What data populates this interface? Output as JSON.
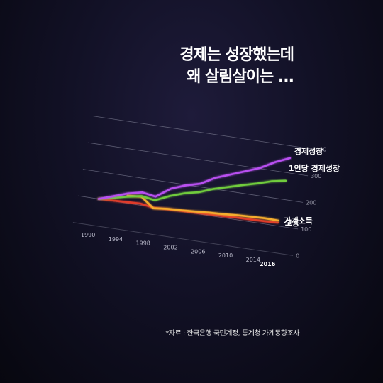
{
  "title": {
    "line1": "경제는 성장했는데",
    "line2": "왜 살림살이는 ..."
  },
  "source": "*자료 : 한국은행 국민계정, 통계청 가계동향조사",
  "colors": {
    "economy_growth": "#b84ff0",
    "per_capita_growth": "#6fcb3c",
    "household_income": "#f4ad2e",
    "employment": "#e03a2a"
  },
  "chart_data": {
    "type": "line",
    "x_ticks": [
      "1990",
      "1994",
      "1998",
      "2002",
      "2006",
      "2010",
      "2014",
      "2016"
    ],
    "y_ticks": [
      "0",
      "100",
      "200",
      "300",
      "400"
    ],
    "ylim": [
      0,
      400
    ],
    "series": [
      {
        "name": "경제성장",
        "color": "#b84ff0",
        "x": [
          1990,
          1992,
          1994,
          1996,
          1998,
          2000,
          2002,
          2004,
          2006,
          2008,
          2010,
          2012,
          2014,
          2016
        ],
        "values": [
          100,
          118,
          136,
          148,
          140,
          178,
          198,
          212,
          242,
          262,
          282,
          302,
          332,
          355
        ]
      },
      {
        "name": "1인당 경제성장",
        "color": "#6fcb3c",
        "x": [
          1990,
          1992,
          1994,
          1996,
          1998,
          2000,
          2002,
          2004,
          2006,
          2008,
          2010,
          2012,
          2014,
          2016
        ],
        "values": [
          100,
          112,
          124,
          134,
          126,
          150,
          168,
          180,
          200,
          215,
          230,
          244,
          260,
          270
        ]
      },
      {
        "name": "가계소득",
        "color": "#f4ad2e",
        "x": [
          1994,
          1996,
          1998,
          2000,
          2002,
          2004,
          2006,
          2008,
          2010,
          2012,
          2014,
          2016
        ],
        "values": [
          128,
          132,
          96,
          102,
          104,
          107,
          111,
          113,
          117,
          119,
          121,
          120
        ]
      },
      {
        "name": "고용",
        "color": "#e03a2a",
        "x": [
          1990,
          1992,
          1994,
          1996,
          1998,
          2000,
          2002,
          2004,
          2006,
          2008,
          2010,
          2012,
          2014,
          2016
        ],
        "values": [
          100,
          102,
          104,
          106,
          98,
          100,
          102,
          103,
          105,
          106,
          108,
          109,
          110,
          112
        ]
      }
    ]
  }
}
